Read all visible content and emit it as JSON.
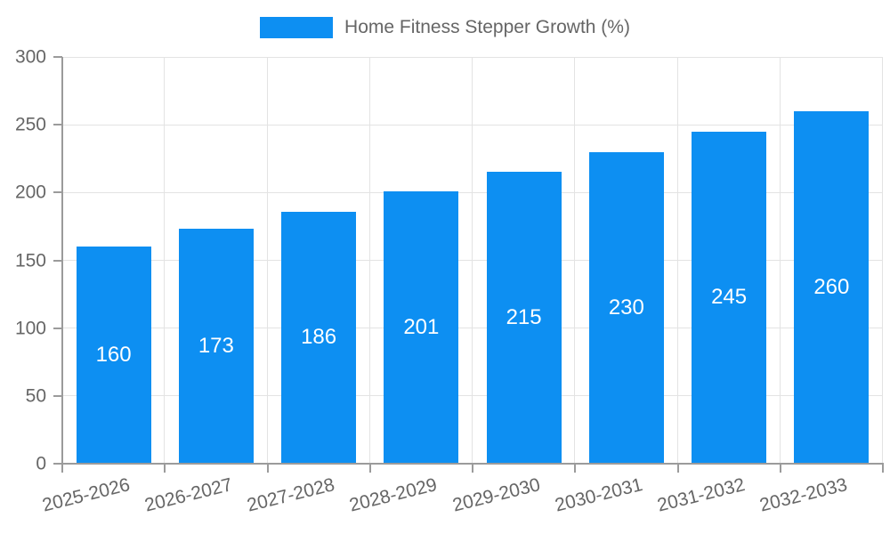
{
  "chart_data": {
    "type": "bar",
    "title": "Home Fitness Stepper Growth (%)",
    "categories": [
      "2025-2026",
      "2026-2027",
      "2027-2028",
      "2028-2029",
      "2029-2030",
      "2030-2031",
      "2031-2032",
      "2032-2033"
    ],
    "values": [
      160,
      173,
      186,
      201,
      215,
      230,
      245,
      260
    ],
    "xlabel": "",
    "ylabel": "",
    "ylim": [
      0,
      300
    ],
    "ytick_step": 50,
    "ytick_labels": [
      "0",
      "50",
      "100",
      "150",
      "200",
      "250",
      "300"
    ],
    "grid": "on",
    "legend_position": "top-center",
    "bar_color": "#0d8ff2",
    "value_label_color": "#ffffff",
    "grid_color": "#e3e3e3",
    "axis_color": "#9b9b9b",
    "tick_label_color": "#666666"
  }
}
